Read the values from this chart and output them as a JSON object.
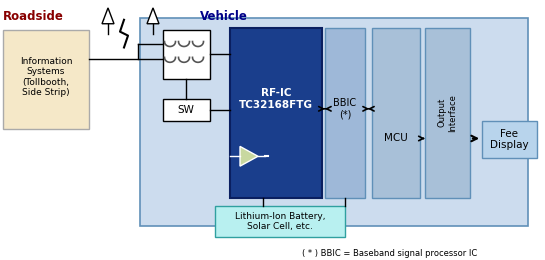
{
  "title_roadside": "Roadside",
  "title_vehicle": "Vehicle",
  "footnote": "( * ) BBIC = Baseband signal processor IC",
  "color_vehicle_bg": "#ccdcee",
  "color_rfic": "#1a3e8c",
  "color_bbic": "#9eb8d8",
  "color_mcu": "#a8c0d8",
  "color_output": "#a8c0d8",
  "color_fee_display": "#b8d4ec",
  "color_battery": "#b8f0f0",
  "color_info_box": "#f5e8c8",
  "color_roadside_text": "#880000",
  "color_vehicle_text": "#000088",
  "color_black": "#000000",
  "color_white": "#ffffff",
  "color_vehicle_border": "#6090b8",
  "color_tri_fill": "#c8d8a0"
}
